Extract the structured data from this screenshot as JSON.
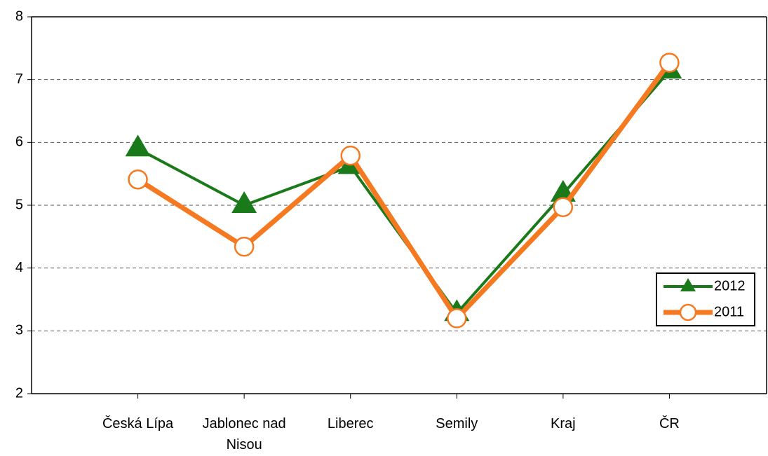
{
  "chart_data": {
    "type": "line",
    "categories": [
      "Česká Lípa",
      "Jablonec nad Nisou",
      "Liberec",
      "Semily",
      "Kraj",
      "ČR"
    ],
    "series": [
      {
        "name": "2012",
        "color": "#1a7a1a",
        "marker": "triangle",
        "values": [
          5.9,
          5.0,
          5.62,
          3.28,
          5.18,
          7.14
        ]
      },
      {
        "name": "2011",
        "color": "#f47920",
        "marker": "circle",
        "values": [
          5.41,
          4.34,
          5.79,
          3.2,
          4.97,
          7.27
        ]
      }
    ],
    "ylim": [
      2,
      8
    ],
    "yticks": [
      2,
      3,
      4,
      5,
      6,
      7,
      8
    ],
    "grid": true,
    "legend": "lower right"
  }
}
